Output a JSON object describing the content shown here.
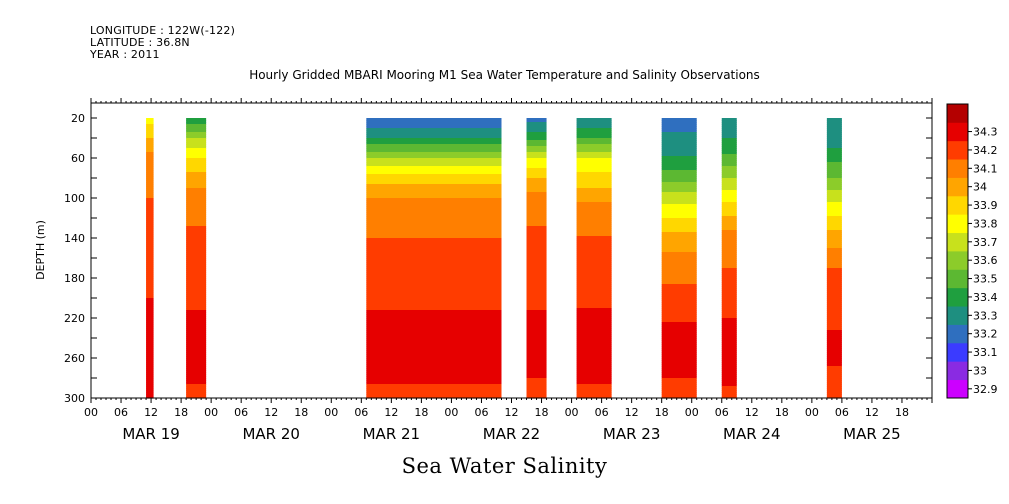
{
  "header": {
    "longitude": "LONGITUDE : 122W(-122)",
    "latitude": "LATITUDE : 36.8N",
    "year": "YEAR : 2011"
  },
  "chart_data": {
    "type": "heatmap",
    "title": "Hourly Gridded MBARI Mooring M1 Sea Water Temperature and Salinity Observations",
    "xlabel": "Sea Water Salinity",
    "ylabel": "DEPTH (m)",
    "x_hour_ticks": [
      "00",
      "06",
      "12",
      "18",
      "00",
      "06",
      "12",
      "18",
      "00",
      "06",
      "12",
      "18",
      "00",
      "06",
      "12",
      "18",
      "00",
      "06",
      "12",
      "18",
      "00",
      "06",
      "12",
      "18",
      "00",
      "06",
      "12",
      "18"
    ],
    "x_day_labels": [
      "MAR 19",
      "MAR 20",
      "MAR 21",
      "MAR 22",
      "MAR 23",
      "MAR 24",
      "MAR 25"
    ],
    "x_range_hours": [
      0,
      168
    ],
    "y_ticks": [
      20,
      60,
      100,
      140,
      180,
      220,
      260,
      300
    ],
    "ylim": [
      300,
      5
    ],
    "colorbar": {
      "levels": [
        "32.9",
        "33",
        "33.1",
        "33.2",
        "33.3",
        "33.4",
        "33.5",
        "33.6",
        "33.7",
        "33.8",
        "33.9",
        "34",
        "34.1",
        "34.2",
        "34.3"
      ],
      "colors": [
        "#cc00ff",
        "#8a2be2",
        "#3b3bff",
        "#2f6fbf",
        "#1e8f80",
        "#1f9f3f",
        "#5cb832",
        "#8ccc2a",
        "#c8e11c",
        "#ffff00",
        "#ffd700",
        "#ffa500",
        "#ff7f00",
        "#ff3c00",
        "#e60000",
        "#b40000"
      ]
    },
    "segments": [
      {
        "start_hour": 11,
        "end_hour": 12.5,
        "profile": [
          [
            20,
            33.75
          ],
          [
            40,
            33.9
          ],
          [
            60,
            34.05
          ],
          [
            100,
            34.1
          ],
          [
            140,
            34.15
          ],
          [
            200,
            34.2
          ],
          [
            260,
            34.25
          ],
          [
            300,
            34.2
          ]
        ]
      },
      {
        "start_hour": 19,
        "end_hour": 23,
        "profile": [
          [
            20,
            33.3
          ],
          [
            40,
            33.6
          ],
          [
            60,
            33.8
          ],
          [
            80,
            33.95
          ],
          [
            100,
            34.05
          ],
          [
            140,
            34.12
          ],
          [
            200,
            34.18
          ],
          [
            250,
            34.27
          ],
          [
            280,
            34.22
          ],
          [
            300,
            34.15
          ]
        ]
      },
      {
        "start_hour": 55,
        "end_hour": 82,
        "profile": [
          [
            20,
            33.1
          ],
          [
            40,
            33.3
          ],
          [
            60,
            33.6
          ],
          [
            80,
            33.85
          ],
          [
            100,
            34.0
          ],
          [
            140,
            34.1
          ],
          [
            200,
            34.18
          ],
          [
            240,
            34.25
          ],
          [
            260,
            34.3
          ],
          [
            280,
            34.22
          ],
          [
            300,
            34.15
          ]
        ]
      },
      {
        "start_hour": 87,
        "end_hour": 91,
        "profile": [
          [
            20,
            33.15
          ],
          [
            40,
            33.35
          ],
          [
            60,
            33.7
          ],
          [
            80,
            33.9
          ],
          [
            100,
            34.05
          ],
          [
            140,
            34.12
          ],
          [
            200,
            34.18
          ],
          [
            250,
            34.26
          ],
          [
            280,
            34.2
          ],
          [
            300,
            34.15
          ]
        ]
      },
      {
        "start_hour": 97,
        "end_hour": 104,
        "profile": [
          [
            20,
            33.2
          ],
          [
            40,
            33.4
          ],
          [
            60,
            33.7
          ],
          [
            90,
            33.9
          ],
          [
            110,
            34.05
          ],
          [
            150,
            34.12
          ],
          [
            200,
            34.18
          ],
          [
            250,
            34.28
          ],
          [
            280,
            34.22
          ],
          [
            300,
            34.15
          ]
        ]
      },
      {
        "start_hour": 114,
        "end_hour": 121,
        "profile": [
          [
            20,
            33.15
          ],
          [
            50,
            33.25
          ],
          [
            80,
            33.45
          ],
          [
            100,
            33.65
          ],
          [
            120,
            33.8
          ],
          [
            140,
            33.95
          ],
          [
            170,
            34.05
          ],
          [
            200,
            34.15
          ],
          [
            250,
            34.25
          ],
          [
            280,
            34.2
          ],
          [
            300,
            34.15
          ]
        ]
      },
      {
        "start_hour": 126,
        "end_hour": 129,
        "profile": [
          [
            20,
            33.2
          ],
          [
            50,
            33.35
          ],
          [
            80,
            33.6
          ],
          [
            110,
            33.85
          ],
          [
            140,
            34.05
          ],
          [
            200,
            34.15
          ],
          [
            250,
            34.27
          ],
          [
            300,
            34.18
          ]
        ]
      },
      {
        "start_hour": 147,
        "end_hour": 150,
        "profile": [
          [
            20,
            33.25
          ],
          [
            50,
            33.3
          ],
          [
            80,
            33.5
          ],
          [
            110,
            33.75
          ],
          [
            140,
            33.95
          ],
          [
            170,
            34.1
          ],
          [
            220,
            34.18
          ],
          [
            250,
            34.23
          ],
          [
            300,
            34.15
          ]
        ]
      }
    ]
  }
}
